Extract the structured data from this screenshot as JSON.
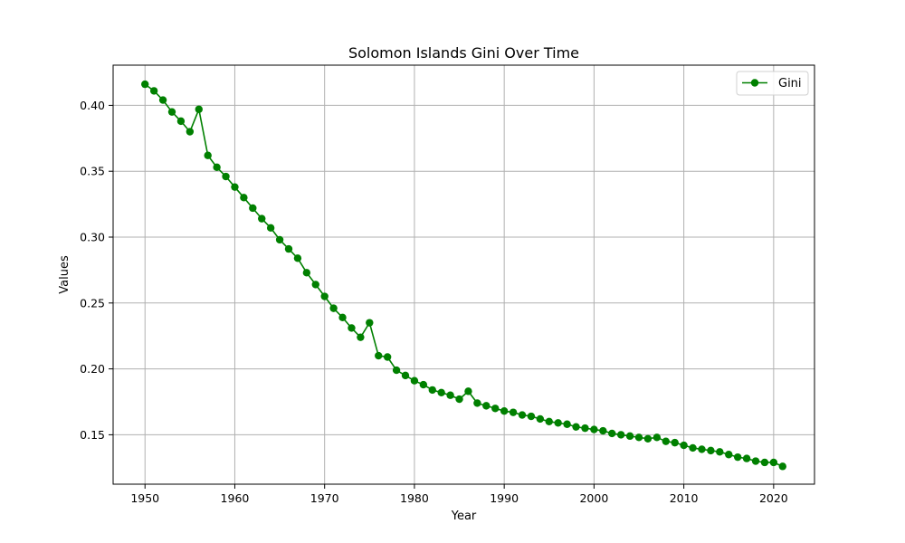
{
  "chart_data": {
    "type": "line",
    "title": "Solomon Islands Gini Over Time",
    "xlabel": "Year",
    "ylabel": "Values",
    "xlim": [
      1946.45,
      2024.55
    ],
    "ylim": [
      0.1125,
      0.4305
    ],
    "xticks": [
      1950,
      1960,
      1970,
      1980,
      1990,
      2000,
      2010,
      2020
    ],
    "yticks": [
      0.15,
      0.2,
      0.25,
      0.3,
      0.35,
      0.4
    ],
    "ytick_labels": [
      "0.15",
      "0.20",
      "0.25",
      "0.30",
      "0.35",
      "0.40"
    ],
    "grid": true,
    "legend_position": "top-right",
    "color": "#008000",
    "series": [
      {
        "name": "Gini",
        "x": [
          1950,
          1951,
          1952,
          1953,
          1954,
          1955,
          1956,
          1957,
          1958,
          1959,
          1960,
          1961,
          1962,
          1963,
          1964,
          1965,
          1966,
          1967,
          1968,
          1969,
          1970,
          1971,
          1972,
          1973,
          1974,
          1975,
          1976,
          1977,
          1978,
          1979,
          1980,
          1981,
          1982,
          1983,
          1984,
          1985,
          1986,
          1987,
          1988,
          1989,
          1990,
          1991,
          1992,
          1993,
          1994,
          1995,
          1996,
          1997,
          1998,
          1999,
          2000,
          2001,
          2002,
          2003,
          2004,
          2005,
          2006,
          2007,
          2008,
          2009,
          2010,
          2011,
          2012,
          2013,
          2014,
          2015,
          2016,
          2017,
          2018,
          2019,
          2020,
          2021
        ],
        "values": [
          0.416,
          0.411,
          0.404,
          0.395,
          0.388,
          0.38,
          0.397,
          0.362,
          0.353,
          0.346,
          0.338,
          0.33,
          0.322,
          0.314,
          0.307,
          0.298,
          0.291,
          0.284,
          0.273,
          0.264,
          0.255,
          0.246,
          0.239,
          0.231,
          0.224,
          0.235,
          0.21,
          0.209,
          0.199,
          0.195,
          0.191,
          0.188,
          0.184,
          0.182,
          0.18,
          0.177,
          0.183,
          0.174,
          0.172,
          0.17,
          0.168,
          0.167,
          0.165,
          0.164,
          0.162,
          0.16,
          0.159,
          0.158,
          0.156,
          0.155,
          0.154,
          0.153,
          0.151,
          0.15,
          0.149,
          0.148,
          0.147,
          0.148,
          0.145,
          0.144,
          0.142,
          0.14,
          0.139,
          0.138,
          0.137,
          0.135,
          0.133,
          0.132,
          0.13,
          0.129,
          0.129,
          0.126
        ]
      }
    ]
  }
}
